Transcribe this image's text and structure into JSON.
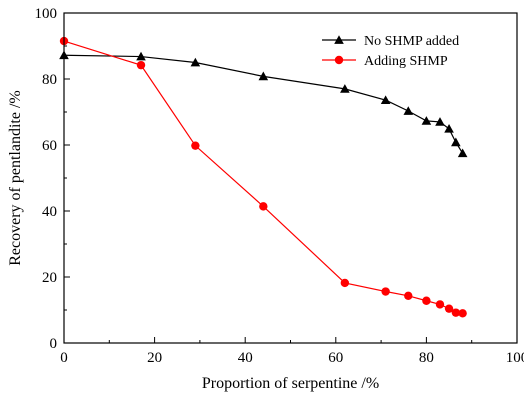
{
  "chart_data": {
    "type": "line",
    "title": "",
    "xlabel": "Proportion of serpentine /%",
    "ylabel": "Recovery of pentlandite /%",
    "xlim": [
      0,
      100
    ],
    "ylim": [
      0,
      100
    ],
    "xticks": [
      0,
      20,
      40,
      60,
      80,
      100
    ],
    "yticks": [
      0,
      20,
      40,
      60,
      80,
      100
    ],
    "grid": false,
    "legend_position": "top-right",
    "series": [
      {
        "name": "No SHMP added",
        "color": "#000000",
        "marker": "triangle",
        "x": [
          0,
          17,
          29,
          44,
          62,
          71,
          76,
          80,
          83,
          85,
          86.5,
          88
        ],
        "y": [
          87.2,
          86.8,
          85,
          80.8,
          77,
          73.6,
          70.3,
          67.3,
          67,
          64.9,
          60.8,
          57.5
        ]
      },
      {
        "name": "Adding SHMP",
        "color": "#ff0000",
        "marker": "circle",
        "x": [
          0,
          17,
          29,
          44,
          62,
          71,
          76,
          80,
          83,
          85,
          86.5,
          88
        ],
        "y": [
          91.5,
          84.2,
          59.8,
          41.4,
          18.2,
          15.6,
          14.3,
          12.8,
          11.7,
          10.4,
          9.2,
          9
        ]
      }
    ]
  }
}
